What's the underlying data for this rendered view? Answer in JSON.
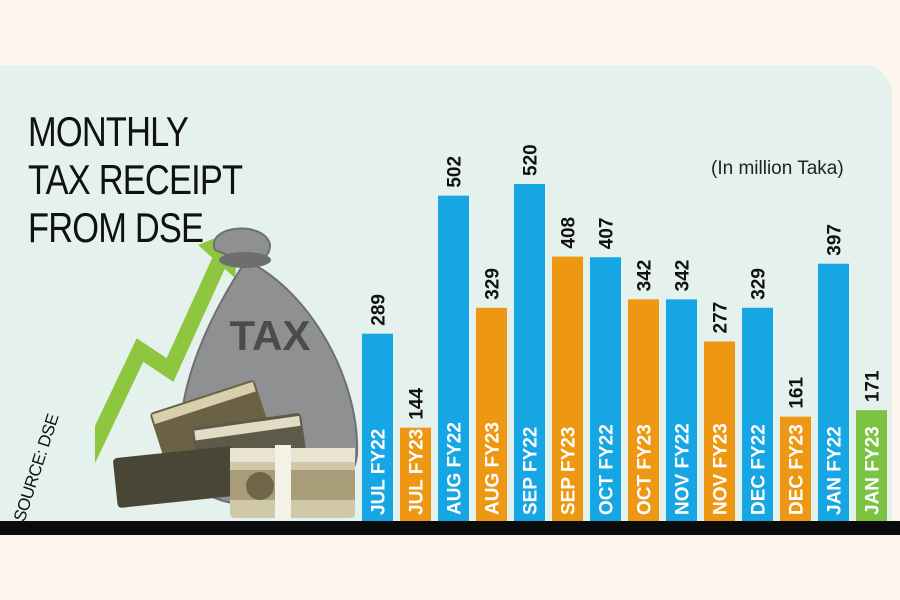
{
  "title_lines": [
    "MONTHLY",
    "TAX RECEIPT",
    "FROM DSE"
  ],
  "units_note": "(In million Taka)",
  "source_label": "SOURCE: DSE",
  "bag_label": "TAX",
  "colors": {
    "fy22": "#15a6e3",
    "fy23": "#ee9712",
    "highlight": "#7cc242",
    "arrow": "#8ec63f",
    "background": "#e4f1ec"
  },
  "chart_data": {
    "type": "bar",
    "title": "MONTHLY TAX RECEIPT FROM DSE",
    "ylabel": "(In million Taka)",
    "categories": [
      "JUL FY22",
      "JUL FY23",
      "AUG FY22",
      "AUG FY23",
      "SEP FY22",
      "SEP FY23",
      "OCT FY22",
      "OCT FY23",
      "NOV FY22",
      "NOV FY23",
      "DEC FY22",
      "DEC FY23",
      "JAN FY22",
      "JAN FY23"
    ],
    "values": [
      289,
      144,
      502,
      329,
      520,
      408,
      407,
      342,
      342,
      277,
      329,
      161,
      397,
      171
    ],
    "value_labels": [
      "289",
      "144",
      "502",
      "329",
      "520",
      "408",
      "407",
      "342",
      "342",
      "277",
      "329",
      "161",
      "397",
      "171"
    ],
    "bar_groups": [
      "fy22",
      "fy23",
      "fy22",
      "fy23",
      "fy22",
      "fy23",
      "fy22",
      "fy23",
      "fy22",
      "fy23",
      "fy22",
      "fy23",
      "fy22",
      "highlight"
    ],
    "ylim": [
      0,
      520
    ],
    "grid": false,
    "legend": "none"
  }
}
